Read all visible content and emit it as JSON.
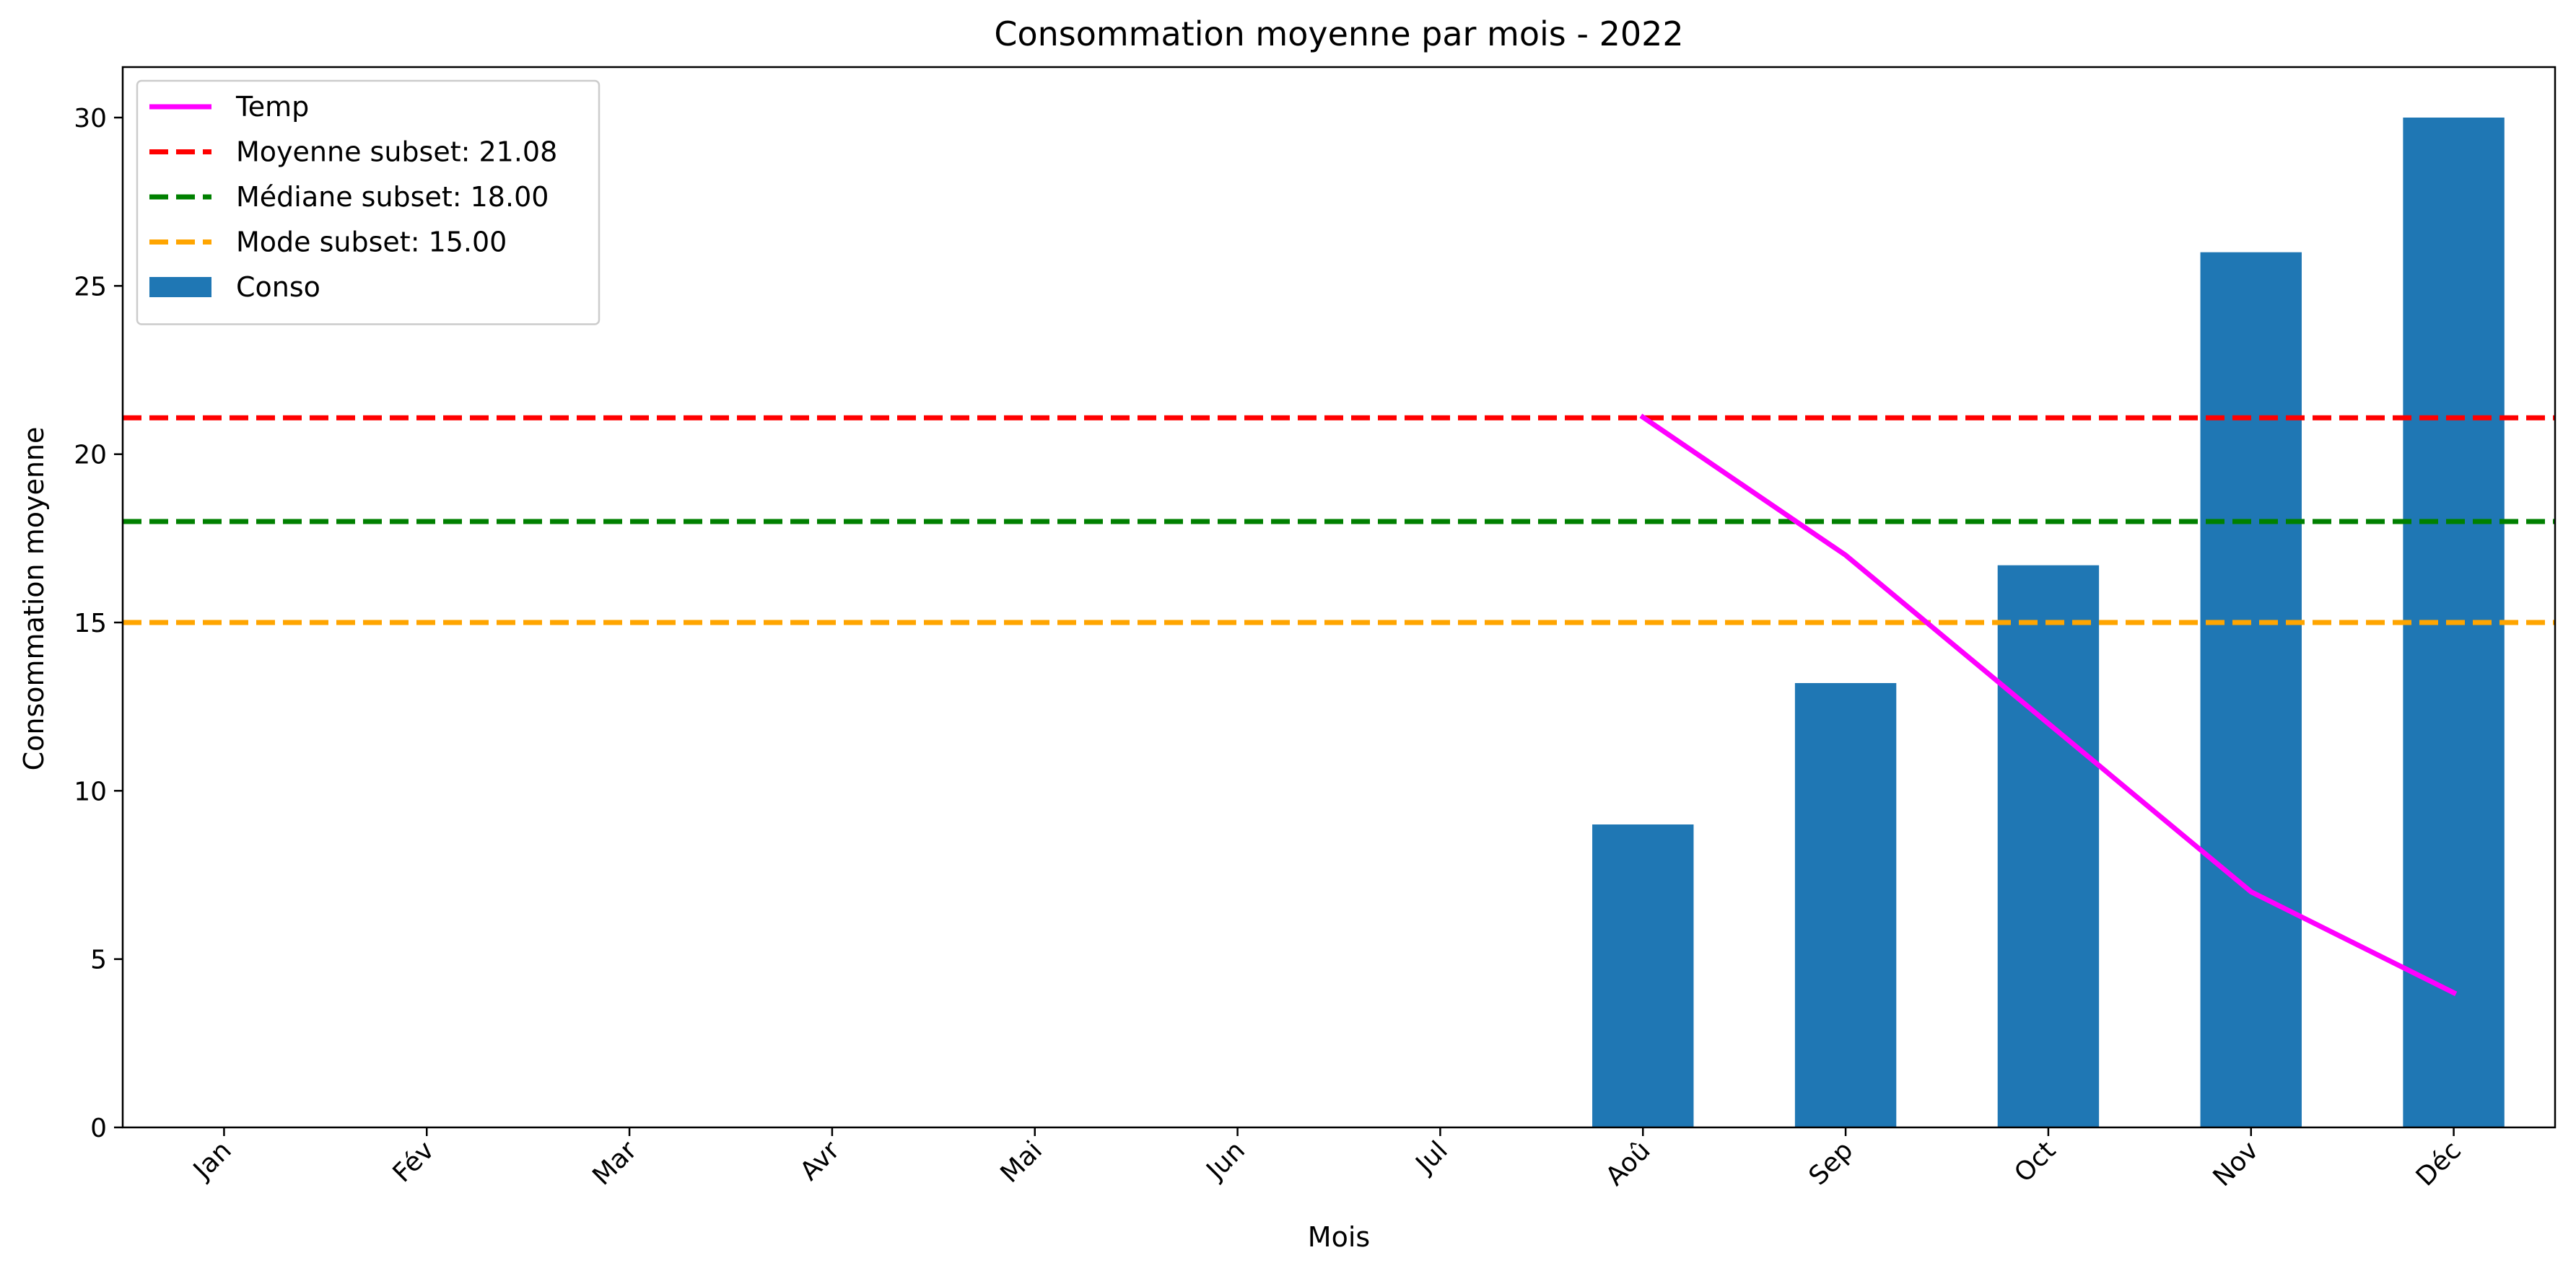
{
  "chart_data": {
    "type": "bar",
    "title": "Consommation moyenne par mois - 2022",
    "xlabel": "Mois",
    "ylabel": "Consommation moyenne",
    "categories": [
      "Jan",
      "Fév",
      "Mar",
      "Avr",
      "Mai",
      "Jun",
      "Jul",
      "Aoû",
      "Sep",
      "Oct",
      "Nov",
      "Déc"
    ],
    "ylim": [
      0,
      31.5
    ],
    "yticks": [
      0,
      5,
      10,
      15,
      20,
      25,
      30
    ],
    "grid": false,
    "legend_position": "top-left",
    "series": [
      {
        "name": "Conso",
        "type": "bar",
        "color": "#1f77b4",
        "values": [
          null,
          null,
          null,
          null,
          null,
          null,
          null,
          9.0,
          13.2,
          16.7,
          26.0,
          30.0
        ]
      },
      {
        "name": "Temp",
        "type": "line",
        "color": "#ff00ff",
        "values": [
          null,
          null,
          null,
          null,
          null,
          null,
          null,
          21.1,
          17.0,
          12.0,
          7.0,
          4.0
        ]
      }
    ],
    "reference_lines": [
      {
        "name": "Moyenne subset: 21.08",
        "value": 21.08,
        "color": "#ff0000",
        "style": "dashed"
      },
      {
        "name": "Médiane subset: 18.00",
        "value": 18.0,
        "color": "#008000",
        "style": "dashed"
      },
      {
        "name": "Mode subset: 15.00",
        "value": 15.0,
        "color": "#ffa500",
        "style": "dashed"
      }
    ],
    "legend": [
      {
        "label": "Temp",
        "kind": "line",
        "color": "#ff00ff"
      },
      {
        "label": "Moyenne subset: 21.08",
        "kind": "dashed",
        "color": "#ff0000"
      },
      {
        "label": "Médiane subset: 18.00",
        "kind": "dashed",
        "color": "#008000"
      },
      {
        "label": "Mode subset: 15.00",
        "kind": "dashed",
        "color": "#ffa500"
      },
      {
        "label": "Conso",
        "kind": "patch",
        "color": "#1f77b4"
      }
    ]
  }
}
